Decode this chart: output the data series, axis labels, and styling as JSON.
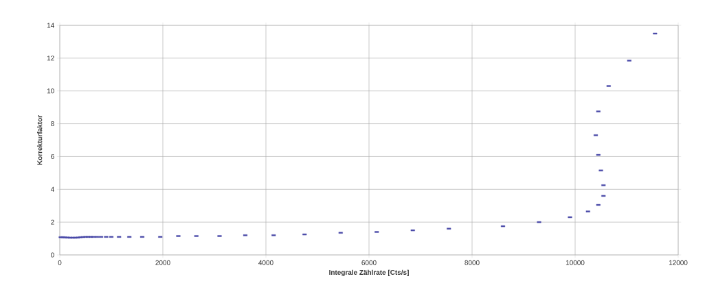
{
  "chart_data": {
    "type": "scatter",
    "xlabel": "Integrale Zählrate [Cts/s]",
    "ylabel": "Korrekturfaktor",
    "color": "#4a4aa8",
    "grid": true,
    "xlim": [
      0,
      12000
    ],
    "xticks": [
      0,
      2000,
      4000,
      6000,
      8000,
      10000,
      12000
    ],
    "ylim": [
      0,
      14
    ],
    "yticks": [
      0,
      2,
      4,
      6,
      8,
      10,
      12,
      14
    ],
    "x": [
      20,
      60,
      100,
      150,
      200,
      250,
      300,
      350,
      400,
      450,
      500,
      550,
      600,
      650,
      720,
      800,
      900,
      1000,
      1150,
      1350,
      1600,
      1950,
      2300,
      2650,
      3100,
      3600,
      4150,
      4750,
      5450,
      6150,
      6850,
      7550,
      8600,
      9300,
      9900,
      10250,
      10450,
      10550,
      10550,
      10500,
      10450,
      10400,
      10450,
      10650,
      11050,
      11550
    ],
    "values": [
      1.08,
      1.08,
      1.07,
      1.06,
      1.05,
      1.05,
      1.05,
      1.06,
      1.08,
      1.09,
      1.1,
      1.1,
      1.1,
      1.1,
      1.1,
      1.1,
      1.1,
      1.1,
      1.1,
      1.1,
      1.1,
      1.1,
      1.15,
      1.15,
      1.15,
      1.2,
      1.2,
      1.25,
      1.35,
      1.4,
      1.5,
      1.6,
      1.75,
      2.0,
      2.3,
      2.65,
      3.05,
      3.6,
      4.25,
      5.15,
      6.1,
      7.3,
      8.75,
      10.3,
      11.85,
      13.5
    ]
  }
}
